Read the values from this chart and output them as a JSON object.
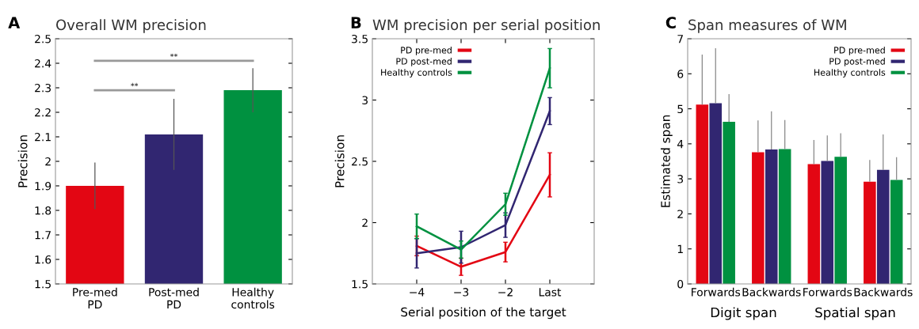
{
  "chart_data": [
    {
      "type": "bar",
      "title": "Overall WM precision",
      "ylabel": "Precision",
      "categories": [
        "Pre-med\nPD",
        "Post-med\nPD",
        "Healthy\ncontrols"
      ],
      "values": [
        1.9,
        2.11,
        2.29
      ],
      "colors": [
        "#e30613",
        "#312671",
        "#009140"
      ],
      "errors": [
        0.095,
        0.145,
        0.09
      ],
      "ylim": [
        1.5,
        2.5
      ],
      "yticks": [
        1.5,
        1.6,
        1.7,
        1.8,
        1.9,
        2,
        2.1,
        2.2,
        2.3,
        2.4,
        2.5
      ],
      "grid": false,
      "legend": false,
      "annotations": [
        "A",
        "**",
        "**"
      ]
    },
    {
      "type": "line",
      "title": "WM precision per serial position",
      "xlabel": "Serial position of the target",
      "ylabel": "Precision",
      "categories": [
        "−4",
        "−3",
        "−2",
        "Last"
      ],
      "ylim": [
        1.5,
        3.5
      ],
      "yticks": [
        1.5,
        2,
        2.5,
        3,
        3.5
      ],
      "grid": false,
      "legend": "top left",
      "marker": "none",
      "line_style": "solid",
      "series": [
        {
          "name": "PD pre-med",
          "color": "#e30613",
          "values": [
            1.81,
            1.64,
            1.76,
            2.39
          ],
          "errors": [
            0.08,
            0.07,
            0.08,
            0.18
          ]
        },
        {
          "name": "PD post-med",
          "color": "#312671",
          "values": [
            1.75,
            1.8,
            1.98,
            2.91
          ],
          "errors": [
            0.12,
            0.13,
            0.1,
            0.11
          ]
        },
        {
          "name": "Healthy controls",
          "color": "#009140",
          "values": [
            1.97,
            1.78,
            2.15,
            3.26
          ],
          "errors": [
            0.1,
            0.07,
            0.09,
            0.16
          ]
        }
      ],
      "annotations": [
        "B"
      ]
    },
    {
      "type": "bar",
      "title": "Span measures of WM",
      "ylabel": "Estimated span",
      "categories": [
        "Forwards",
        "Backwards",
        "Forwards",
        "Backwards"
      ],
      "ylim": [
        0,
        7
      ],
      "yticks": [
        0,
        1,
        2,
        3,
        4,
        5,
        6,
        7
      ],
      "grid": false,
      "legend": "top right",
      "series": [
        {
          "name": "PD pre-med",
          "color": "#e30613",
          "values": [
            5.12,
            3.76,
            3.42,
            2.92
          ],
          "errors": [
            [
              5.12,
              6.55
            ],
            [
              3.76,
              4.67
            ],
            [
              3.42,
              4.11
            ],
            [
              2.92,
              3.54
            ]
          ]
        },
        {
          "name": "PD post-med",
          "color": "#312671",
          "values": [
            5.16,
            3.84,
            3.51,
            3.26
          ],
          "errors": [
            [
              5.16,
              6.73
            ],
            [
              3.84,
              4.93
            ],
            [
              3.51,
              4.24
            ],
            [
              3.26,
              4.27
            ]
          ]
        },
        {
          "name": "Healthy controls",
          "color": "#009140",
          "values": [
            4.63,
            3.85,
            3.63,
            2.97
          ],
          "errors": [
            [
              4.63,
              5.42
            ],
            [
              3.85,
              4.68
            ],
            [
              3.63,
              4.3
            ],
            [
              2.97,
              3.62
            ]
          ]
        }
      ],
      "annotations": [
        "C",
        "Digit span",
        "Spatial span"
      ]
    }
  ]
}
